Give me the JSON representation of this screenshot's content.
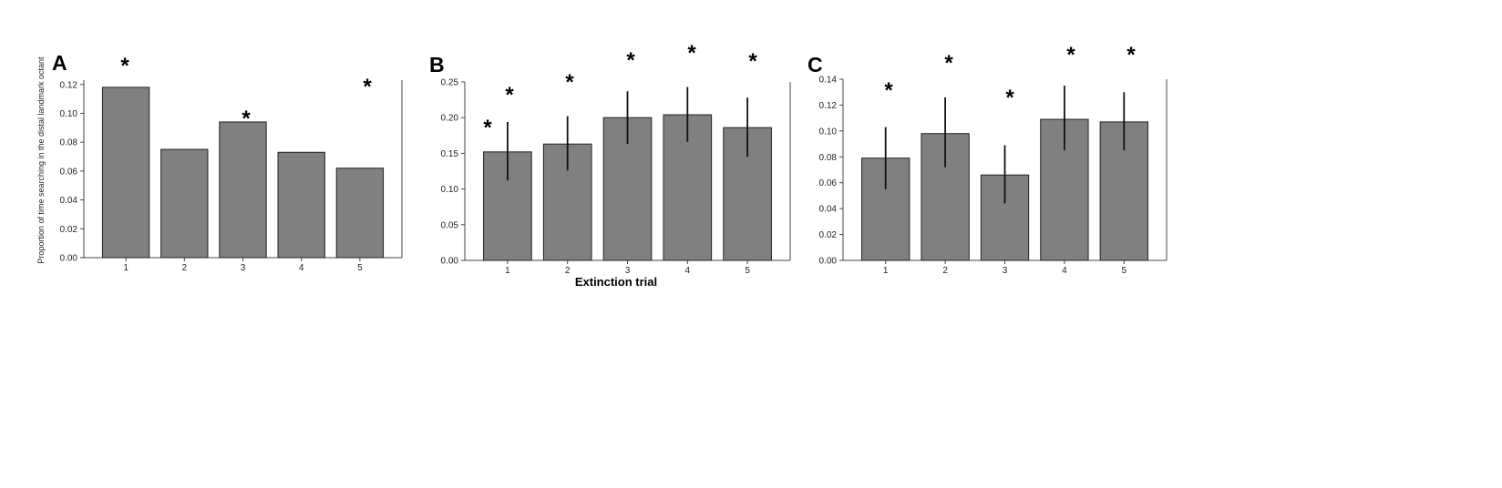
{
  "ylabel": "Proportion of time searching in the distal landmark octant",
  "xlabel": "Extinction trial",
  "colors": {
    "bar": "#808080",
    "bar_edge": "#222222",
    "axis": "#444444",
    "error": "#111111"
  },
  "chart_data": [
    {
      "type": "bar",
      "panel": "A",
      "categories": [
        "1",
        "2",
        "3",
        "4",
        "5"
      ],
      "values": [
        0.118,
        0.075,
        0.094,
        0.073,
        0.062
      ],
      "errors": null,
      "significance": [
        "*",
        "*",
        "*",
        "*",
        "*"
      ],
      "ylim": [
        0,
        0.123
      ],
      "yticks": [
        "0.00",
        "0.02",
        "0.04",
        "0.06",
        "0.08",
        "0.10",
        "0.12"
      ],
      "ytick_values": [
        0,
        0.02,
        0.04,
        0.06,
        0.08,
        0.1,
        0.12
      ]
    },
    {
      "type": "bar",
      "panel": "B",
      "categories": [
        "1",
        "2",
        "3",
        "4",
        "5"
      ],
      "values": [
        0.152,
        0.163,
        0.2,
        0.204,
        0.186
      ],
      "errors": [
        [
          0.112,
          0.194
        ],
        [
          0.126,
          0.202
        ],
        [
          0.163,
          0.237
        ],
        [
          0.166,
          0.243
        ],
        [
          0.145,
          0.228
        ]
      ],
      "significance": [
        "*",
        "*",
        "*",
        "*",
        "*"
      ],
      "ylim": [
        0,
        0.25
      ],
      "yticks": [
        "0.00",
        "0.05",
        "0.10",
        "0.15",
        "0.20",
        "0.25"
      ],
      "ytick_values": [
        0,
        0.05,
        0.1,
        0.15,
        0.2,
        0.25
      ]
    },
    {
      "type": "bar",
      "panel": "C",
      "categories": [
        "1",
        "2",
        "3",
        "4",
        "5"
      ],
      "values": [
        0.079,
        0.098,
        0.066,
        0.109,
        0.107
      ],
      "errors": [
        [
          0.055,
          0.103
        ],
        [
          0.072,
          0.126
        ],
        [
          0.044,
          0.089
        ],
        [
          0.085,
          0.135
        ],
        [
          0.085,
          0.13
        ]
      ],
      "significance": [
        "*",
        "*",
        "*",
        "*",
        "*"
      ],
      "ylim": [
        0,
        0.14
      ],
      "yticks": [
        "0.00",
        "0.02",
        "0.04",
        "0.06",
        "0.08",
        "0.10",
        "0.12",
        "0.14"
      ],
      "ytick_values": [
        0,
        0.02,
        0.04,
        0.06,
        0.08,
        0.1,
        0.12,
        0.14
      ]
    }
  ]
}
